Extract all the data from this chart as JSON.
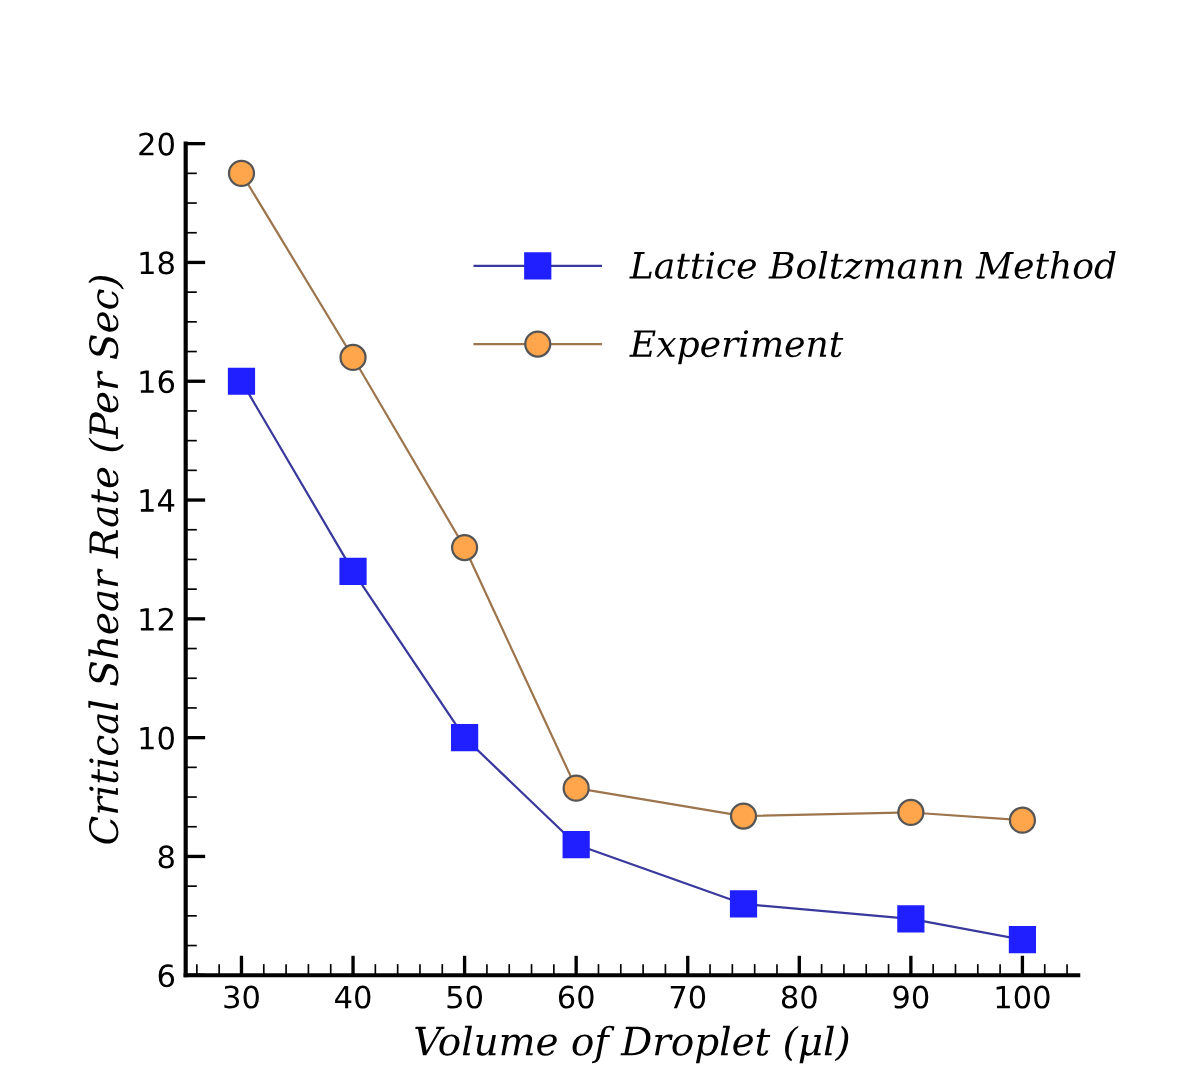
{
  "chart_data": {
    "type": "line",
    "xlabel": "Volume of Droplet (μl)",
    "ylabel": "Critical Shear Rate (Per Sec)",
    "x": [
      30,
      40,
      50,
      60,
      75,
      90,
      100
    ],
    "series": [
      {
        "name": "Lattice Boltzmann Method",
        "color": "#1f1fff",
        "marker": "square",
        "values": [
          16.0,
          12.8,
          10.0,
          8.2,
          7.2,
          6.95,
          6.6
        ]
      },
      {
        "name": "Experiment",
        "color": "#ffa64d",
        "marker": "circle",
        "values": [
          19.5,
          16.4,
          13.2,
          9.15,
          8.68,
          8.74,
          8.61
        ]
      }
    ],
    "xlim": [
      25,
      105
    ],
    "xticks": [
      30,
      40,
      50,
      60,
      70,
      80,
      90,
      100
    ],
    "ylim": [
      6,
      20
    ],
    "yticks": [
      6,
      8,
      10,
      12,
      14,
      16,
      18,
      20
    ],
    "grid": false,
    "legend": "top right",
    "line_style": "solid"
  }
}
